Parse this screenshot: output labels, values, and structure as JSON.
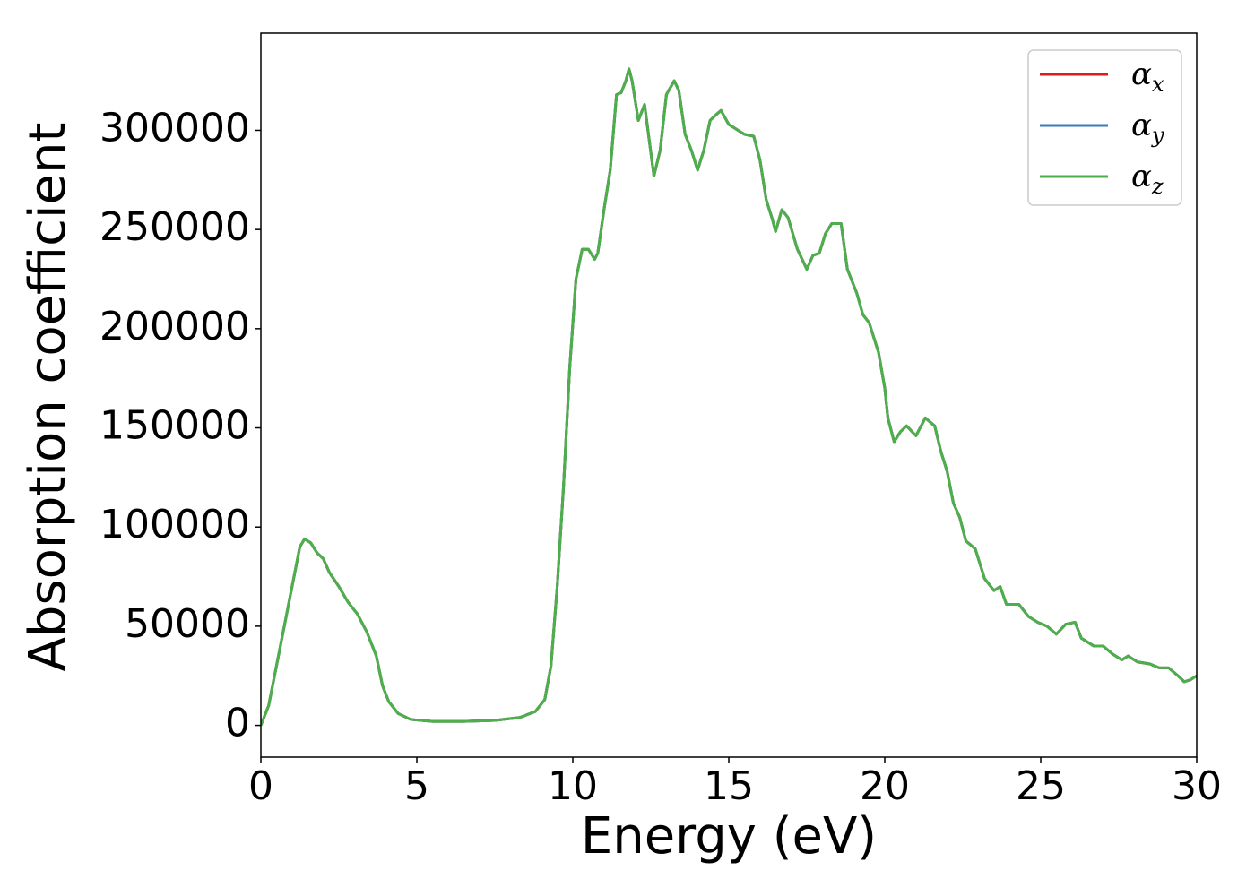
{
  "chart_data": {
    "type": "line",
    "xlabel": "Energy (eV)",
    "ylabel": "Absorption coefficient",
    "x": [
      0,
      0.25,
      0.5,
      0.75,
      1.0,
      1.25,
      1.4,
      1.6,
      1.8,
      2.0,
      2.2,
      2.5,
      2.8,
      3.1,
      3.4,
      3.7,
      3.9,
      4.1,
      4.4,
      4.8,
      5.5,
      6.5,
      7.5,
      8.3,
      8.8,
      9.1,
      9.3,
      9.5,
      9.7,
      9.9,
      10.1,
      10.3,
      10.5,
      10.7,
      10.8,
      11.0,
      11.2,
      11.4,
      11.55,
      11.7,
      11.8,
      11.9,
      12.1,
      12.3,
      12.45,
      12.6,
      12.8,
      13.0,
      13.25,
      13.4,
      13.6,
      13.8,
      14.0,
      14.2,
      14.4,
      14.6,
      14.75,
      15.0,
      15.3,
      15.5,
      15.8,
      16.0,
      16.2,
      16.4,
      16.5,
      16.7,
      16.9,
      17.2,
      17.5,
      17.7,
      17.9,
      18.1,
      18.3,
      18.6,
      18.8,
      19.1,
      19.3,
      19.5,
      19.8,
      20.0,
      20.1,
      20.3,
      20.5,
      20.7,
      21.0,
      21.3,
      21.6,
      21.8,
      22.0,
      22.2,
      22.4,
      22.6,
      22.9,
      23.2,
      23.5,
      23.7,
      23.9,
      24.3,
      24.6,
      24.9,
      25.2,
      25.5,
      25.8,
      26.1,
      26.3,
      26.7,
      27.0,
      27.3,
      27.6,
      27.8,
      28.1,
      28.5,
      28.8,
      29.1,
      29.4,
      29.6,
      29.8,
      30.0
    ],
    "series": [
      {
        "name": "αx",
        "color": "#e41a1c",
        "values": [
          0,
          10000,
          30000,
          50000,
          70000,
          90000,
          94000,
          92000,
          87000,
          84000,
          77000,
          70000,
          62000,
          56000,
          47000,
          35000,
          20000,
          12000,
          6000,
          3000,
          2000,
          2000,
          2500,
          4000,
          7000,
          13000,
          30000,
          70000,
          120000,
          180000,
          225000,
          240000,
          240000,
          235000,
          238000,
          260000,
          280000,
          318000,
          319000,
          325000,
          331000,
          325000,
          305000,
          313000,
          295000,
          277000,
          290000,
          318000,
          325000,
          320000,
          298000,
          290000,
          280000,
          290000,
          305000,
          308000,
          310000,
          303000,
          300000,
          298000,
          297000,
          285000,
          265000,
          255000,
          249000,
          260000,
          256000,
          240000,
          230000,
          237000,
          238000,
          248000,
          253000,
          253000,
          230000,
          218000,
          207000,
          203000,
          188000,
          170000,
          155000,
          143000,
          148000,
          151000,
          146000,
          155000,
          151000,
          138000,
          128000,
          112000,
          105000,
          93000,
          89000,
          74000,
          68000,
          70000,
          61000,
          61000,
          55000,
          52000,
          50000,
          46000,
          51000,
          52000,
          44000,
          40000,
          40000,
          36000,
          33000,
          35000,
          32000,
          31000,
          29000,
          29000,
          25000,
          22000,
          23000,
          25000
        ]
      },
      {
        "name": "αy",
        "color": "#377eb8",
        "values": [
          0,
          10000,
          30000,
          50000,
          70000,
          90000,
          94000,
          92000,
          87000,
          84000,
          77000,
          70000,
          62000,
          56000,
          47000,
          35000,
          20000,
          12000,
          6000,
          3000,
          2000,
          2000,
          2500,
          4000,
          7000,
          13000,
          30000,
          70000,
          120000,
          180000,
          225000,
          240000,
          240000,
          235000,
          238000,
          260000,
          280000,
          318000,
          319000,
          325000,
          331000,
          325000,
          305000,
          313000,
          295000,
          277000,
          290000,
          318000,
          325000,
          320000,
          298000,
          290000,
          280000,
          290000,
          305000,
          308000,
          310000,
          303000,
          300000,
          298000,
          297000,
          285000,
          265000,
          255000,
          249000,
          260000,
          256000,
          240000,
          230000,
          237000,
          238000,
          248000,
          253000,
          253000,
          230000,
          218000,
          207000,
          203000,
          188000,
          170000,
          155000,
          143000,
          148000,
          151000,
          146000,
          155000,
          151000,
          138000,
          128000,
          112000,
          105000,
          93000,
          89000,
          74000,
          68000,
          70000,
          61000,
          61000,
          55000,
          52000,
          50000,
          46000,
          51000,
          52000,
          44000,
          40000,
          40000,
          36000,
          33000,
          35000,
          32000,
          31000,
          29000,
          29000,
          25000,
          22000,
          23000,
          25000
        ]
      },
      {
        "name": "αz",
        "color": "#4daf4a",
        "values": [
          0,
          10000,
          30000,
          50000,
          70000,
          90000,
          94000,
          92000,
          87000,
          84000,
          77000,
          70000,
          62000,
          56000,
          47000,
          35000,
          20000,
          12000,
          6000,
          3000,
          2000,
          2000,
          2500,
          4000,
          7000,
          13000,
          30000,
          70000,
          120000,
          180000,
          225000,
          240000,
          240000,
          235000,
          238000,
          260000,
          280000,
          318000,
          319000,
          325000,
          331000,
          325000,
          305000,
          313000,
          295000,
          277000,
          290000,
          318000,
          325000,
          320000,
          298000,
          290000,
          280000,
          290000,
          305000,
          308000,
          310000,
          303000,
          300000,
          298000,
          297000,
          285000,
          265000,
          255000,
          249000,
          260000,
          256000,
          240000,
          230000,
          237000,
          238000,
          248000,
          253000,
          253000,
          230000,
          218000,
          207000,
          203000,
          188000,
          170000,
          155000,
          143000,
          148000,
          151000,
          146000,
          155000,
          151000,
          138000,
          128000,
          112000,
          105000,
          93000,
          89000,
          74000,
          68000,
          70000,
          61000,
          61000,
          55000,
          52000,
          50000,
          46000,
          51000,
          52000,
          44000,
          40000,
          40000,
          36000,
          33000,
          35000,
          32000,
          31000,
          29000,
          29000,
          25000,
          22000,
          23000,
          25000
        ]
      }
    ],
    "xlim": [
      0,
      30
    ],
    "xticks": [
      0,
      5,
      10,
      15,
      20,
      25,
      30
    ],
    "ylim": [
      -16000,
      349000
    ],
    "yticks": [
      0,
      50000,
      100000,
      150000,
      200000,
      250000,
      300000
    ],
    "grid": false,
    "legend": "upper right"
  }
}
